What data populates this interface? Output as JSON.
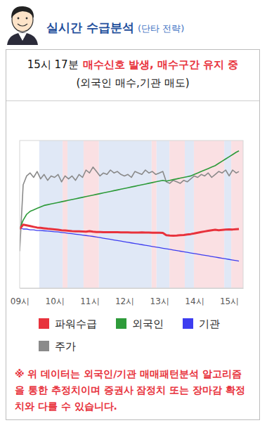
{
  "header": {
    "title": "실시간 수급분석",
    "subtitle": "(단타 전략)"
  },
  "signal": {
    "time": "15시 17분",
    "text": "매수신호 발생, 매수구간 유지 중",
    "detail": "(외국인 매수,기관 매도)"
  },
  "chart_data": {
    "type": "line",
    "grid": false,
    "legend": "bottom",
    "tick_labels": "x",
    "xlim": [
      9.0,
      15.4
    ],
    "ylim": [
      0,
      100
    ],
    "xticks": [
      {
        "value": 9,
        "label": "09시"
      },
      {
        "value": 10,
        "label": "10시"
      },
      {
        "value": 11,
        "label": "11시"
      },
      {
        "value": 12,
        "label": "12시"
      },
      {
        "value": 13,
        "label": "13시"
      },
      {
        "value": 14,
        "label": "14시"
      },
      {
        "value": 15,
        "label": "15시"
      }
    ],
    "zones": [
      {
        "start": 9.56,
        "end": 10.23,
        "color": "#e0e8f6"
      },
      {
        "start": 10.23,
        "end": 10.37,
        "color": "#fae0e3"
      },
      {
        "start": 10.37,
        "end": 10.83,
        "color": "#e0e8f6"
      },
      {
        "start": 10.83,
        "end": 11.27,
        "color": "#fae0e3"
      },
      {
        "start": 11.27,
        "end": 12.78,
        "color": "#e0e8f6"
      },
      {
        "start": 12.78,
        "end": 12.92,
        "color": "#fae0e3"
      },
      {
        "start": 12.92,
        "end": 13.29,
        "color": "#e0e8f6"
      },
      {
        "start": 13.29,
        "end": 13.73,
        "color": "#fae0e3"
      },
      {
        "start": 13.73,
        "end": 13.99,
        "color": "#e0e8f6"
      },
      {
        "start": 13.99,
        "end": 14.86,
        "color": "#fae0e3"
      },
      {
        "start": 14.86,
        "end": 15.06,
        "color": "#e0e8f6"
      },
      {
        "start": 15.06,
        "end": 15.4,
        "color": "#fae0e3"
      }
    ],
    "x": [
      9.0,
      9.1,
      9.2,
      9.3,
      9.4,
      9.5,
      9.6,
      9.7,
      9.8,
      9.9,
      10.0,
      10.1,
      10.2,
      10.3,
      10.4,
      10.5,
      10.6,
      10.7,
      10.8,
      10.9,
      11.0,
      11.1,
      11.2,
      11.3,
      11.4,
      11.5,
      11.6,
      11.7,
      11.8,
      11.9,
      12.0,
      12.1,
      12.2,
      12.3,
      12.4,
      12.5,
      12.6,
      12.7,
      12.8,
      12.9,
      13.0,
      13.1,
      13.2,
      13.3,
      13.4,
      13.5,
      13.6,
      13.7,
      13.8,
      13.9,
      14.0,
      14.1,
      14.2,
      14.3,
      14.4,
      14.5,
      14.6,
      14.7,
      14.8,
      14.9,
      15.0,
      15.1,
      15.2,
      15.28
    ],
    "series": [
      {
        "name": "파워수급",
        "color": "#e8323c",
        "values": [
          40,
          43,
          42.5,
          42,
          41.5,
          41,
          40.8,
          40.5,
          40.2,
          40,
          39.8,
          39.5,
          39.2,
          39,
          38.8,
          38.6,
          38.5,
          38.4,
          38.3,
          38.2,
          38.6,
          38.2,
          38,
          38,
          37.9,
          37.9,
          37.8,
          37.8,
          37.8,
          37.7,
          37.7,
          37.7,
          37.6,
          37.6,
          37.6,
          37.7,
          37.6,
          37.6,
          37.5,
          37.5,
          37.5,
          37.4,
          35.8,
          35.6,
          35.5,
          35.6,
          35.8,
          36,
          36.3,
          36.6,
          37,
          37.5,
          38,
          38.4,
          38.8,
          39.2,
          39.5,
          39.2,
          39.4,
          39.6,
          39.8,
          39.7,
          39.9,
          40
        ]
      },
      {
        "name": "외국인",
        "color": "#2e9b3a",
        "values": [
          40,
          46,
          50,
          52,
          53,
          54,
          55,
          56,
          56.5,
          57,
          57.5,
          58,
          58.5,
          59,
          59.5,
          60,
          60.5,
          61,
          61.5,
          62,
          62.5,
          63,
          63.5,
          64,
          64.5,
          65,
          65.5,
          66,
          66.5,
          67,
          67.5,
          68,
          68.5,
          69,
          69.5,
          70,
          70.5,
          71,
          71.5,
          72,
          72.5,
          73,
          72.5,
          73,
          73.5,
          74,
          74.5,
          75,
          75.5,
          76,
          77,
          78,
          79,
          80,
          81,
          82,
          83,
          84.5,
          86,
          87.5,
          89,
          90.5,
          92,
          93
        ]
      },
      {
        "name": "기관",
        "color": "#3d3df0",
        "values": [
          41,
          40,
          40,
          39.5,
          39.5,
          39,
          39,
          38.8,
          38.6,
          38.4,
          38.2,
          38,
          37.7,
          37.4,
          37.1,
          36.8,
          36.5,
          36.2,
          35.9,
          35.6,
          35.3,
          35,
          34.6,
          34.2,
          33.8,
          33.4,
          33,
          32.6,
          32.2,
          31.8,
          31.4,
          31,
          30.6,
          30.2,
          29.8,
          29.4,
          29,
          28.6,
          28.2,
          27.8,
          27.4,
          27,
          26.6,
          26.2,
          25.8,
          25.4,
          25,
          24.6,
          24.2,
          23.8,
          23.4,
          23,
          22.6,
          22.2,
          21.8,
          21.4,
          21,
          20.6,
          20.2,
          19.8,
          19.4,
          19,
          18.6,
          18.3
        ]
      },
      {
        "name": "주가",
        "color": "#8a8a8a",
        "values": [
          25,
          70,
          76,
          78,
          75,
          79,
          74,
          77,
          73,
          76,
          75,
          77,
          72,
          76,
          74,
          76,
          73,
          77,
          75,
          80,
          78,
          82,
          79,
          76,
          78,
          77,
          80,
          78,
          79,
          77,
          76,
          77,
          75,
          79,
          78,
          77,
          80,
          78,
          79,
          77,
          78,
          79,
          72,
          71,
          73,
          72,
          71,
          73,
          72,
          74,
          76,
          75,
          77,
          76,
          78,
          75,
          77,
          79,
          78,
          80,
          76,
          80,
          78,
          79
        ]
      }
    ]
  },
  "note": "※ 위 데이터는 외국인/기관 매매패턴분석 알고리즘을 통한 추정치이며 증권사 잠정치 또는 장마감 확정치와 다를 수 있습니다."
}
